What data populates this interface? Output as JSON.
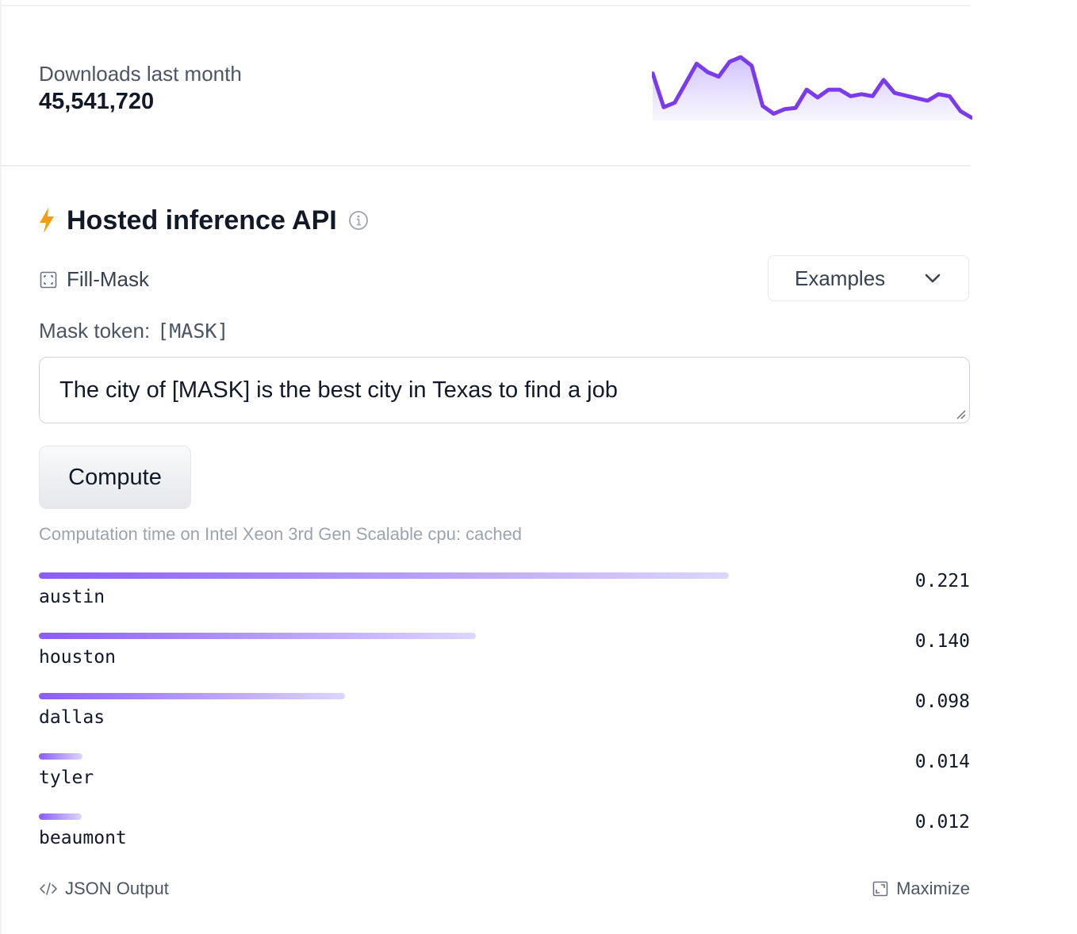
{
  "downloads": {
    "label": "Downloads last month",
    "value": "45,541,720",
    "trend": [
      0.7,
      0.18,
      0.25,
      0.55,
      0.85,
      0.72,
      0.65,
      0.88,
      0.95,
      0.82,
      0.2,
      0.08,
      0.15,
      0.17,
      0.45,
      0.33,
      0.45,
      0.45,
      0.35,
      0.38,
      0.35,
      0.6,
      0.4,
      0.36,
      0.32,
      0.28,
      0.38,
      0.35,
      0.12,
      0.02
    ]
  },
  "api": {
    "title": "Hosted inference API",
    "task": "Fill-Mask",
    "examples_label": "Examples",
    "mask_label": "Mask token:",
    "mask_token": "[MASK]",
    "input_text": "The city of [MASK] is the best city in Texas to find a job",
    "compute_label": "Compute",
    "computation_time": "Computation time on Intel Xeon 3rd Gen Scalable cpu: cached"
  },
  "results": [
    {
      "label": "austin",
      "score": 0.221,
      "score_text": "0.221"
    },
    {
      "label": "houston",
      "score": 0.14,
      "score_text": "0.140"
    },
    {
      "label": "dallas",
      "score": 0.098,
      "score_text": "0.098"
    },
    {
      "label": "tyler",
      "score": 0.014,
      "score_text": "0.014"
    },
    {
      "label": "beaumont",
      "score": 0.012,
      "score_text": "0.012"
    }
  ],
  "footer": {
    "json_output_label": "JSON Output",
    "maximize_label": "Maximize"
  },
  "colors": {
    "accent": "#7c3aed",
    "bolt": "#f59e0b"
  }
}
